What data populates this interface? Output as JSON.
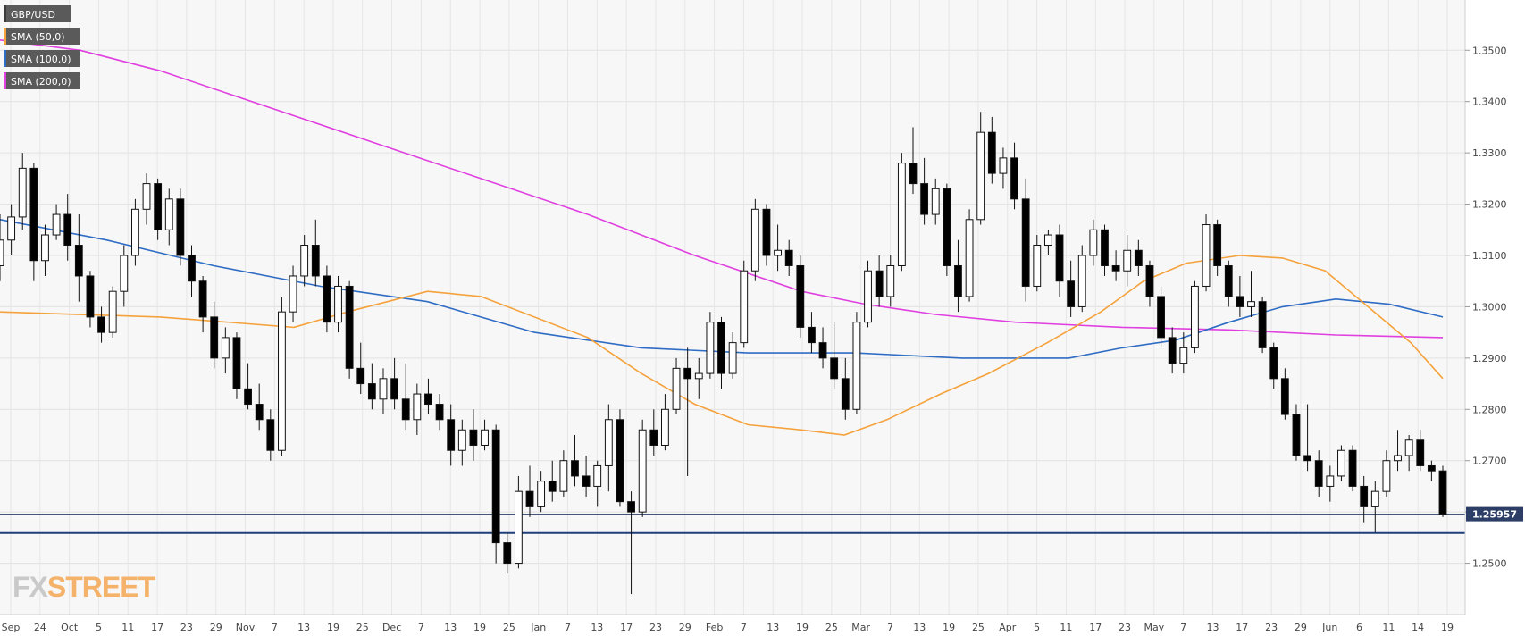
{
  "chart_data": {
    "type": "candlestick",
    "symbol": "GBP/USD",
    "ylim": [
      1.24,
      1.3598
    ],
    "y_ticks": [
      "1.2500",
      "1.2600",
      "1.2700",
      "1.2800",
      "1.2900",
      "1.3000",
      "1.3100",
      "1.3200",
      "1.3300",
      "1.3400",
      "1.3500"
    ],
    "x_ticks": [
      "Sep",
      "24",
      "Oct",
      "5",
      "11",
      "17",
      "23",
      "29",
      "Nov",
      "7",
      "13",
      "19",
      "25",
      "Dec",
      "7",
      "13",
      "19",
      "25",
      "Jan",
      "7",
      "13",
      "17",
      "23",
      "29",
      "Feb",
      "7",
      "13",
      "19",
      "25",
      "Mar",
      "7",
      "13",
      "19",
      "25",
      "Apr",
      "5",
      "11",
      "17",
      "23",
      "May",
      "7",
      "13",
      "17",
      "23",
      "29",
      "Jun",
      "6",
      "11",
      "14",
      "19"
    ],
    "legend": [
      {
        "name": "GBP/USD",
        "color": "#3a3a3a"
      },
      {
        "name": "SMA (50,0)",
        "color": "#f5a23c"
      },
      {
        "name": "SMA (100,0)",
        "color": "#2f6cc4"
      },
      {
        "name": "SMA (200,0)",
        "color": "#e040e0"
      }
    ],
    "current_price": "1.25957",
    "horizontal_lines": [
      1.25957,
      1.2559
    ],
    "candles": [
      [
        1.308,
        1.318,
        1.305,
        1.313
      ],
      [
        1.313,
        1.32,
        1.31,
        1.3175
      ],
      [
        1.3175,
        1.33,
        1.315,
        1.327
      ],
      [
        1.327,
        1.328,
        1.305,
        1.309
      ],
      [
        1.309,
        1.316,
        1.306,
        1.314
      ],
      [
        1.314,
        1.32,
        1.313,
        1.318
      ],
      [
        1.318,
        1.322,
        1.309,
        1.312
      ],
      [
        1.312,
        1.318,
        1.301,
        1.306
      ],
      [
        1.306,
        1.307,
        1.296,
        1.298
      ],
      [
        1.298,
        1.3,
        1.293,
        1.295
      ],
      [
        1.295,
        1.304,
        1.294,
        1.303
      ],
      [
        1.303,
        1.312,
        1.3,
        1.31
      ],
      [
        1.31,
        1.321,
        1.308,
        1.319
      ],
      [
        1.319,
        1.326,
        1.316,
        1.324
      ],
      [
        1.324,
        1.325,
        1.313,
        1.315
      ],
      [
        1.315,
        1.323,
        1.312,
        1.321
      ],
      [
        1.321,
        1.323,
        1.308,
        1.31
      ],
      [
        1.31,
        1.312,
        1.302,
        1.305
      ],
      [
        1.305,
        1.306,
        1.295,
        1.298
      ],
      [
        1.298,
        1.301,
        1.288,
        1.29
      ],
      [
        1.29,
        1.296,
        1.287,
        1.294
      ],
      [
        1.294,
        1.295,
        1.282,
        1.284
      ],
      [
        1.284,
        1.289,
        1.28,
        1.281
      ],
      [
        1.281,
        1.285,
        1.276,
        1.278
      ],
      [
        1.278,
        1.28,
        1.27,
        1.272
      ],
      [
        1.272,
        1.302,
        1.271,
        1.299
      ],
      [
        1.299,
        1.308,
        1.297,
        1.306
      ],
      [
        1.306,
        1.314,
        1.304,
        1.312
      ],
      [
        1.312,
        1.317,
        1.304,
        1.306
      ],
      [
        1.306,
        1.308,
        1.295,
        1.297
      ],
      [
        1.297,
        1.306,
        1.295,
        1.304
      ],
      [
        1.304,
        1.305,
        1.286,
        1.288
      ],
      [
        1.288,
        1.293,
        1.283,
        1.285
      ],
      [
        1.285,
        1.289,
        1.28,
        1.282
      ],
      [
        1.282,
        1.288,
        1.279,
        1.286
      ],
      [
        1.286,
        1.29,
        1.28,
        1.282
      ],
      [
        1.282,
        1.289,
        1.276,
        1.278
      ],
      [
        1.278,
        1.285,
        1.275,
        1.283
      ],
      [
        1.283,
        1.286,
        1.279,
        1.281
      ],
      [
        1.281,
        1.283,
        1.276,
        1.278
      ],
      [
        1.278,
        1.281,
        1.269,
        1.272
      ],
      [
        1.272,
        1.278,
        1.269,
        1.276
      ],
      [
        1.276,
        1.28,
        1.27,
        1.273
      ],
      [
        1.273,
        1.278,
        1.272,
        1.276
      ],
      [
        1.276,
        1.277,
        1.25,
        1.254
      ],
      [
        1.254,
        1.256,
        1.248,
        1.25
      ],
      [
        1.25,
        1.267,
        1.249,
        1.264
      ],
      [
        1.264,
        1.269,
        1.259,
        1.261
      ],
      [
        1.261,
        1.268,
        1.26,
        1.266
      ],
      [
        1.266,
        1.27,
        1.262,
        1.264
      ],
      [
        1.264,
        1.272,
        1.263,
        1.27
      ],
      [
        1.27,
        1.275,
        1.265,
        1.267
      ],
      [
        1.267,
        1.271,
        1.263,
        1.265
      ],
      [
        1.265,
        1.27,
        1.261,
        1.269
      ],
      [
        1.269,
        1.281,
        1.264,
        1.278
      ],
      [
        1.278,
        1.28,
        1.261,
        1.262
      ],
      [
        1.262,
        1.264,
        1.244,
        1.26
      ],
      [
        1.26,
        1.278,
        1.259,
        1.276
      ],
      [
        1.276,
        1.28,
        1.271,
        1.273
      ],
      [
        1.273,
        1.283,
        1.272,
        1.28
      ],
      [
        1.28,
        1.29,
        1.279,
        1.288
      ],
      [
        1.288,
        1.292,
        1.267,
        1.286
      ],
      [
        1.286,
        1.29,
        1.282,
        1.287
      ],
      [
        1.287,
        1.299,
        1.286,
        1.297
      ],
      [
        1.297,
        1.298,
        1.284,
        1.287
      ],
      [
        1.287,
        1.295,
        1.286,
        1.293
      ],
      [
        1.293,
        1.309,
        1.292,
        1.307
      ],
      [
        1.307,
        1.321,
        1.305,
        1.319
      ],
      [
        1.319,
        1.32,
        1.308,
        1.31
      ],
      [
        1.31,
        1.316,
        1.307,
        1.311
      ],
      [
        1.311,
        1.313,
        1.306,
        1.308
      ],
      [
        1.308,
        1.31,
        1.294,
        1.296
      ],
      [
        1.296,
        1.299,
        1.291,
        1.293
      ],
      [
        1.293,
        1.296,
        1.288,
        1.29
      ],
      [
        1.29,
        1.297,
        1.284,
        1.286
      ],
      [
        1.286,
        1.29,
        1.278,
        1.28
      ],
      [
        1.28,
        1.299,
        1.279,
        1.297
      ],
      [
        1.297,
        1.309,
        1.296,
        1.307
      ],
      [
        1.307,
        1.31,
        1.3,
        1.302
      ],
      [
        1.302,
        1.31,
        1.3,
        1.308
      ],
      [
        1.308,
        1.33,
        1.307,
        1.328
      ],
      [
        1.328,
        1.335,
        1.322,
        1.324
      ],
      [
        1.324,
        1.329,
        1.316,
        1.318
      ],
      [
        1.318,
        1.325,
        1.316,
        1.323
      ],
      [
        1.323,
        1.324,
        1.306,
        1.308
      ],
      [
        1.308,
        1.313,
        1.299,
        1.302
      ],
      [
        1.302,
        1.319,
        1.301,
        1.317
      ],
      [
        1.317,
        1.338,
        1.316,
        1.334
      ],
      [
        1.334,
        1.337,
        1.324,
        1.326
      ],
      [
        1.326,
        1.331,
        1.323,
        1.329
      ],
      [
        1.329,
        1.332,
        1.319,
        1.321
      ],
      [
        1.321,
        1.325,
        1.301,
        1.304
      ],
      [
        1.304,
        1.314,
        1.303,
        1.312
      ],
      [
        1.312,
        1.315,
        1.31,
        1.314
      ],
      [
        1.314,
        1.316,
        1.302,
        1.305
      ],
      [
        1.305,
        1.309,
        1.298,
        1.3
      ],
      [
        1.3,
        1.312,
        1.299,
        1.31
      ],
      [
        1.31,
        1.317,
        1.308,
        1.315
      ],
      [
        1.315,
        1.316,
        1.306,
        1.308
      ],
      [
        1.308,
        1.311,
        1.305,
        1.307
      ],
      [
        1.307,
        1.314,
        1.304,
        1.311
      ],
      [
        1.311,
        1.313,
        1.306,
        1.308
      ],
      [
        1.308,
        1.309,
        1.3,
        1.302
      ],
      [
        1.302,
        1.304,
        1.292,
        1.294
      ],
      [
        1.294,
        1.296,
        1.287,
        1.289
      ],
      [
        1.289,
        1.295,
        1.287,
        1.292
      ],
      [
        1.292,
        1.305,
        1.291,
        1.304
      ],
      [
        1.304,
        1.318,
        1.303,
        1.316
      ],
      [
        1.316,
        1.317,
        1.306,
        1.308
      ],
      [
        1.308,
        1.309,
        1.3,
        1.302
      ],
      [
        1.302,
        1.306,
        1.298,
        1.3
      ],
      [
        1.3,
        1.307,
        1.298,
        1.301
      ],
      [
        1.301,
        1.302,
        1.291,
        1.292
      ],
      [
        1.292,
        1.293,
        1.284,
        1.286
      ],
      [
        1.286,
        1.288,
        1.278,
        1.279
      ],
      [
        1.279,
        1.281,
        1.27,
        1.271
      ],
      [
        1.271,
        1.281,
        1.268,
        1.27
      ],
      [
        1.27,
        1.272,
        1.263,
        1.265
      ],
      [
        1.265,
        1.269,
        1.262,
        1.267
      ],
      [
        1.267,
        1.273,
        1.266,
        1.272
      ],
      [
        1.272,
        1.273,
        1.264,
        1.265
      ],
      [
        1.265,
        1.267,
        1.258,
        1.261
      ],
      [
        1.261,
        1.266,
        1.256,
        1.264
      ],
      [
        1.264,
        1.272,
        1.263,
        1.27
      ],
      [
        1.27,
        1.276,
        1.268,
        1.271
      ],
      [
        1.271,
        1.275,
        1.268,
        1.274
      ],
      [
        1.274,
        1.276,
        1.268,
        1.269
      ],
      [
        1.269,
        1.27,
        1.266,
        1.268
      ],
      [
        1.268,
        1.269,
        1.259,
        1.2596
      ]
    ],
    "sma50": [
      [
        0,
        1.299
      ],
      [
        30,
        1.298
      ],
      [
        55,
        1.296
      ],
      [
        65,
        1.299
      ],
      [
        80,
        1.303
      ],
      [
        90,
        1.302
      ],
      [
        110,
        1.294
      ],
      [
        120,
        1.287
      ],
      [
        130,
        1.281
      ],
      [
        140,
        1.277
      ],
      [
        150,
        1.276
      ],
      [
        158,
        1.275
      ],
      [
        166,
        1.278
      ],
      [
        176,
        1.283
      ],
      [
        185,
        1.287
      ],
      [
        196,
        1.293
      ],
      [
        206,
        1.299
      ],
      [
        214,
        1.305
      ],
      [
        222,
        1.3085
      ],
      [
        232,
        1.31
      ],
      [
        240,
        1.3095
      ],
      [
        248,
        1.307
      ],
      [
        256,
        1.3
      ],
      [
        264,
        1.293
      ],
      [
        270,
        1.286
      ]
    ],
    "sma100": [
      [
        0,
        1.317
      ],
      [
        20,
        1.313
      ],
      [
        40,
        1.308
      ],
      [
        60,
        1.304
      ],
      [
        80,
        1.301
      ],
      [
        100,
        1.295
      ],
      [
        120,
        1.292
      ],
      [
        140,
        1.291
      ],
      [
        160,
        1.291
      ],
      [
        180,
        1.29
      ],
      [
        200,
        1.29
      ],
      [
        210,
        1.292
      ],
      [
        220,
        1.2935
      ],
      [
        230,
        1.297
      ],
      [
        240,
        1.3
      ],
      [
        250,
        1.3015
      ],
      [
        260,
        1.3005
      ],
      [
        270,
        1.298
      ]
    ],
    "sma200": [
      [
        0,
        1.352
      ],
      [
        15,
        1.35
      ],
      [
        30,
        1.346
      ],
      [
        50,
        1.339
      ],
      [
        70,
        1.332
      ],
      [
        90,
        1.325
      ],
      [
        110,
        1.318
      ],
      [
        130,
        1.31
      ],
      [
        150,
        1.303
      ],
      [
        162,
        1.3005
      ],
      [
        175,
        1.2985
      ],
      [
        190,
        1.297
      ],
      [
        210,
        1.296
      ],
      [
        230,
        1.2955
      ],
      [
        250,
        1.2945
      ],
      [
        270,
        1.294
      ]
    ]
  },
  "watermark": {
    "fx": "FX",
    "street": "STREET"
  }
}
